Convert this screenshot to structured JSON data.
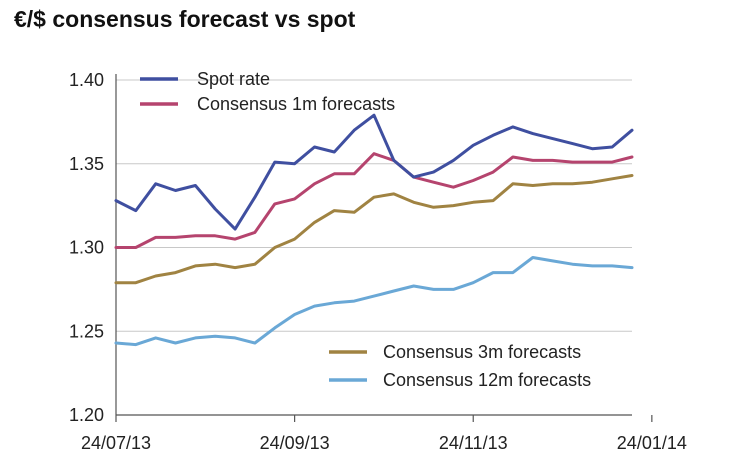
{
  "chart_data": {
    "type": "line",
    "title": "€/$ consensus forecast vs spot",
    "xlabel": "",
    "ylabel": "",
    "ylim": [
      1.2,
      1.4
    ],
    "yticks": [
      "1.20",
      "1.25",
      "1.30",
      "1.35",
      "1.40"
    ],
    "ytick_values": [
      1.2,
      1.25,
      1.3,
      1.35,
      1.4
    ],
    "xticks": [
      "24/07/13",
      "24/09/13",
      "24/11/13",
      "24/01/14"
    ],
    "x": [
      "24/07/13",
      "31/07/13",
      "07/08/13",
      "14/08/13",
      "21/08/13",
      "28/08/13",
      "04/09/13",
      "11/09/13",
      "18/09/13",
      "25/09/13",
      "02/10/13",
      "09/10/13",
      "16/10/13",
      "23/10/13",
      "30/10/13",
      "06/11/13",
      "13/11/13",
      "20/11/13",
      "27/11/13",
      "04/12/13",
      "11/12/13",
      "18/12/13",
      "25/12/13",
      "01/01/14",
      "08/01/14",
      "15/01/14",
      "24/01/14"
    ],
    "series": [
      {
        "name": "Spot rate",
        "color": "#3f4fa0",
        "values": [
          1.328,
          1.322,
          1.338,
          1.334,
          1.337,
          1.323,
          1.311,
          1.33,
          1.351,
          1.35,
          1.36,
          1.357,
          1.37,
          1.379,
          1.352,
          1.342,
          1.345,
          1.352,
          1.361,
          1.367,
          1.372,
          1.368,
          1.365,
          1.362,
          1.359,
          1.36,
          1.37
        ]
      },
      {
        "name": "Consensus 1m forecasts",
        "color": "#b5446e",
        "values": [
          1.3,
          1.3,
          1.306,
          1.306,
          1.307,
          1.307,
          1.305,
          1.309,
          1.326,
          1.329,
          1.338,
          1.344,
          1.344,
          1.356,
          1.352,
          1.342,
          1.339,
          1.336,
          1.34,
          1.345,
          1.354,
          1.352,
          1.352,
          1.351,
          1.351,
          1.351,
          1.354
        ]
      },
      {
        "name": "Consensus 3m forecasts",
        "color": "#a08342",
        "values": [
          1.279,
          1.279,
          1.283,
          1.285,
          1.289,
          1.29,
          1.288,
          1.29,
          1.3,
          1.305,
          1.315,
          1.322,
          1.321,
          1.33,
          1.332,
          1.327,
          1.324,
          1.325,
          1.327,
          1.328,
          1.338,
          1.337,
          1.338,
          1.338,
          1.339,
          1.341,
          1.343
        ]
      },
      {
        "name": "Consensus 12m forecasts",
        "color": "#6aa8d6",
        "values": [
          1.243,
          1.242,
          1.246,
          1.243,
          1.246,
          1.247,
          1.246,
          1.243,
          1.252,
          1.26,
          1.265,
          1.267,
          1.268,
          1.271,
          1.274,
          1.277,
          1.275,
          1.275,
          1.279,
          1.285,
          1.285,
          1.294,
          1.292,
          1.29,
          1.289,
          1.289,
          1.288
        ]
      }
    ],
    "legend_top": [
      "Spot rate",
      "Consensus 1m forecasts"
    ],
    "legend_bottom": [
      "Consensus 3m forecasts",
      "Consensus 12m forecasts"
    ]
  }
}
